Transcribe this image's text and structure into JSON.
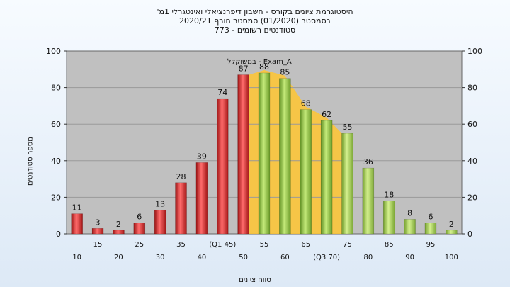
{
  "chart_data": {
    "type": "bar",
    "title_lines": [
      "'היסטוגרמת ציונים בקורס - חשבון דיפרנציאלי ואינטגרלי 1מ",
      "בסמסטר  (01/2020)  סמסטר חורף 2020/21",
      "סטודנטים רשומים - 773"
    ],
    "xlabel": "טווח ציונים",
    "ylabel": "מספר סטודנטים",
    "ylim": [
      0,
      100
    ],
    "yticks": [
      0,
      20,
      40,
      60,
      80,
      100
    ],
    "categories": [
      "10",
      "15",
      "20",
      "25",
      "30",
      "35",
      "40",
      "Q1 45",
      "50",
      "55",
      "60",
      "65",
      "Q3 70",
      "75",
      "80",
      "85",
      "90",
      "95",
      "100"
    ],
    "tick_labels": [
      "10",
      "15",
      "20",
      "25",
      "30",
      "35",
      "40",
      "(Q1 45)",
      "50",
      "55",
      "60",
      "65",
      "(Q3 70)",
      "75",
      "80",
      "85",
      "90",
      "95",
      "100"
    ],
    "values": [
      11,
      3,
      2,
      6,
      13,
      28,
      39,
      74,
      87,
      88,
      85,
      68,
      62,
      55,
      36,
      18,
      8,
      6,
      2
    ],
    "bar_groups": [
      "low",
      "low",
      "low",
      "low",
      "low",
      "low",
      "low",
      "low",
      "low",
      "mid",
      "mid",
      "mid",
      "mid",
      "high",
      "high",
      "high",
      "high",
      "high",
      "high"
    ],
    "colors": {
      "low": "#dd2a2a",
      "mid": "#8cbc3e",
      "high": "#a4cd58",
      "band": "#ffc531",
      "plot_bg": "#c0c0c0",
      "grid": "#9a9a9a"
    },
    "annotation": "במשוקלל - Exam_A",
    "grid": true
  }
}
